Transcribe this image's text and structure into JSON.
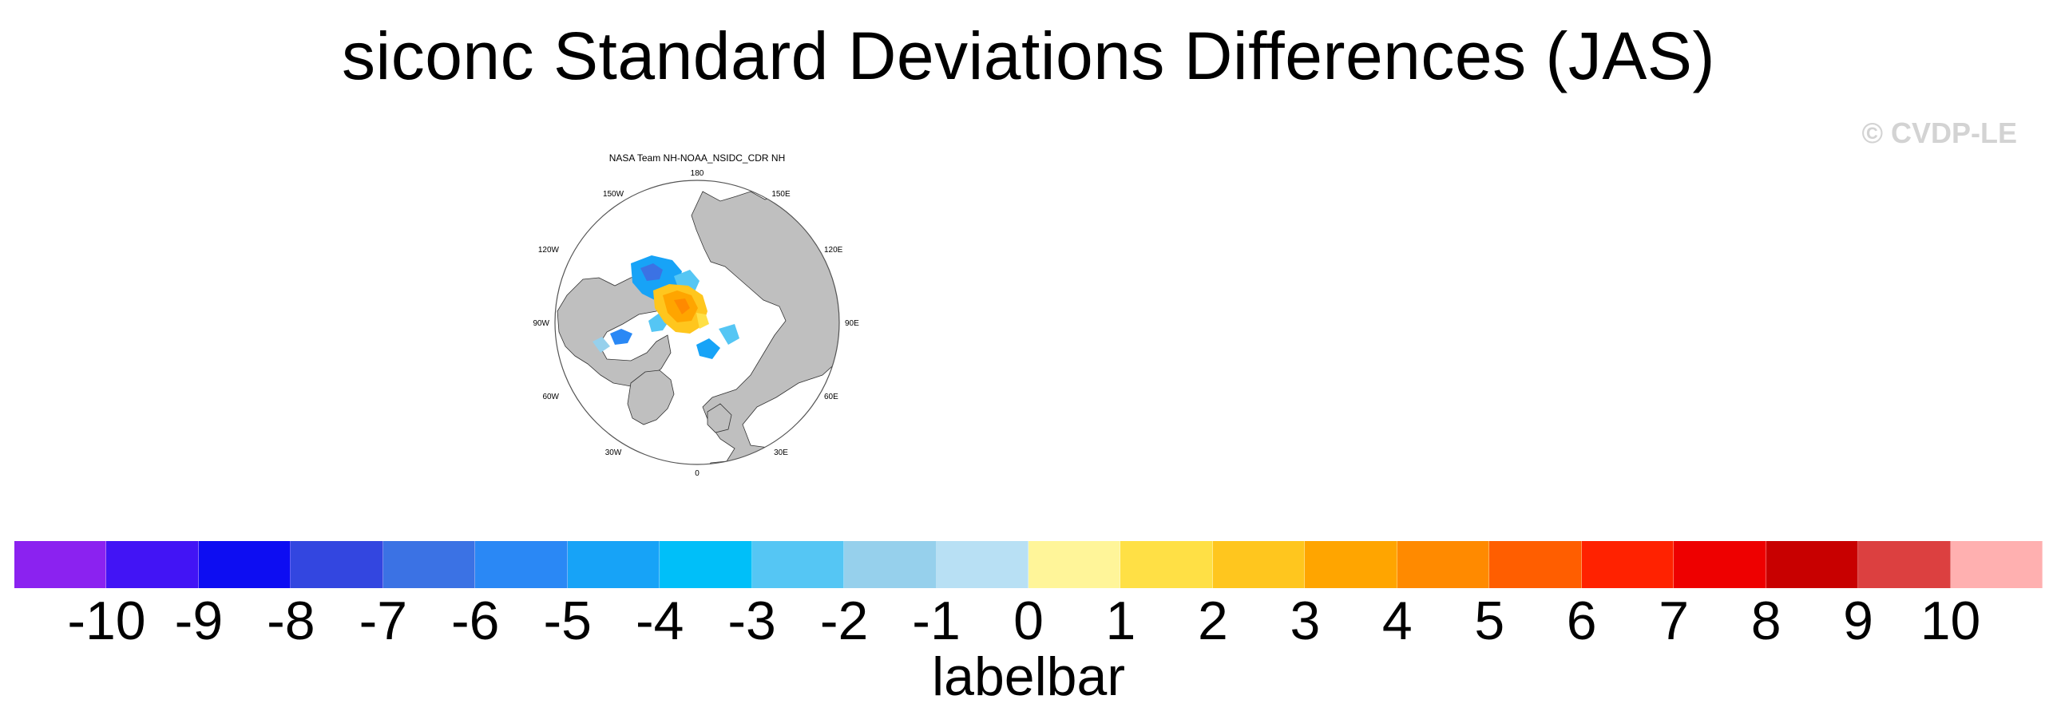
{
  "title": "siconc Standard Deviations Differences (JAS)",
  "watermark": "© CVDP-LE",
  "map": {
    "subtitle": "NASA Team NH-NOAA_NSIDC_CDR NH",
    "projection": "north-polar-stereographic",
    "longitude_labels": {
      "top": "180",
      "upper_left": "150W",
      "upper_right": "150E",
      "left_upper": "120W",
      "right_upper": "120E",
      "left": "90W",
      "right": "90E",
      "left_lower": "60W",
      "right_lower": "60E",
      "lower_left": "30W",
      "lower_right": "30E",
      "bottom": "0"
    },
    "land_color": "#bfbfbf",
    "ocean_color": "#ffffff"
  },
  "labelbar": {
    "title": "labelbar",
    "ticks": [
      "-10",
      "-9",
      "-8",
      "-7",
      "-6",
      "-5",
      "-4",
      "-3",
      "-2",
      "-1",
      "0",
      "1",
      "2",
      "3",
      "4",
      "5",
      "6",
      "7",
      "8",
      "9",
      "10"
    ],
    "colors": [
      "#8b22f0",
      "#4214f5",
      "#0d0df2",
      "#3346e0",
      "#3b72e4",
      "#2a88f5",
      "#17a3f7",
      "#00bff9",
      "#55c6f4",
      "#96d0ec",
      "#b8e0f4",
      "#fff599",
      "#ffe045",
      "#ffc61e",
      "#ffa500",
      "#ff8a00",
      "#ff5e00",
      "#ff2200",
      "#ee0000",
      "#c80000",
      "#dc4040",
      "#ffb0b0"
    ]
  },
  "chart_data": {
    "type": "heatmap",
    "title": "siconc Standard Deviations Differences (JAS)",
    "subtitle": "NASA Team NH-NOAA_NSIDC_CDR NH",
    "colorbar_label": "labelbar",
    "colorbar_levels": [
      -10,
      -9,
      -8,
      -7,
      -6,
      -5,
      -4,
      -3,
      -2,
      -1,
      0,
      1,
      2,
      3,
      4,
      5,
      6,
      7,
      8,
      9,
      10
    ]
  }
}
